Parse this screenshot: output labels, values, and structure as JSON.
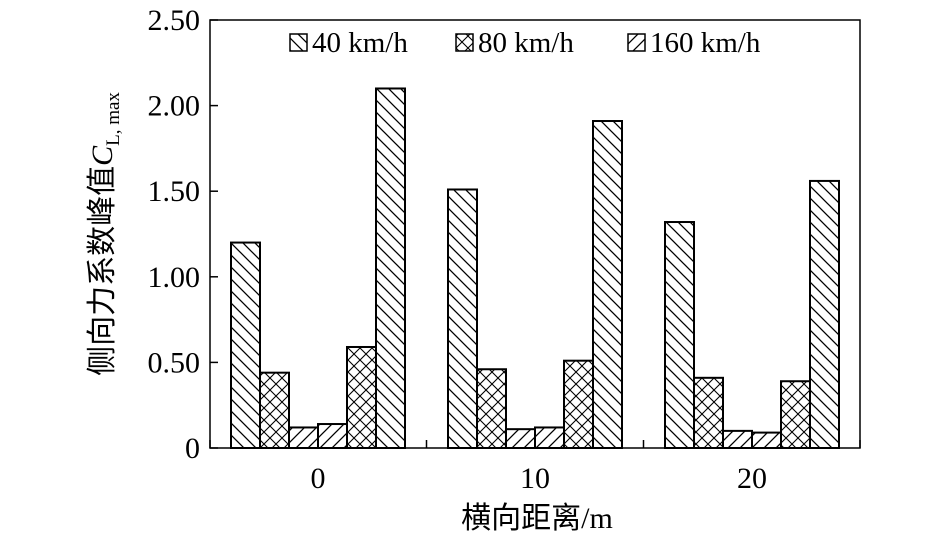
{
  "chart_data": {
    "type": "bar",
    "xlabel": "横向距离/m",
    "ylabel": {
      "main": "侧向力系数峰值",
      "symbol": "C",
      "subscript": "L, max"
    },
    "ylim": [
      0,
      2.5
    ],
    "yticks": [
      0,
      0.5,
      1.0,
      1.5,
      2.0,
      2.5
    ],
    "ytick_labels": [
      "0",
      "0.50",
      "1.00",
      "1.50",
      "2.00",
      "2.50"
    ],
    "categories": [
      "0",
      "10",
      "20"
    ],
    "legend_position": "top",
    "grid": false,
    "series": [
      {
        "name": "40 km/h",
        "pattern": "backslash",
        "values": [
          1.2,
          1.51,
          1.32
        ]
      },
      {
        "name": "80 km/h",
        "pattern": "crosshatch",
        "values": [
          0.44,
          0.46,
          0.41
        ]
      },
      {
        "name": "160 km/h",
        "pattern": "slash",
        "values": [
          0.12,
          0.11,
          0.1
        ]
      },
      {
        "name": "",
        "pattern": "slash",
        "values": [
          0.14,
          0.12,
          0.09
        ]
      },
      {
        "name": "",
        "pattern": "crosshatch",
        "values": [
          0.59,
          0.51,
          0.39
        ]
      },
      {
        "name": "",
        "pattern": "backslash",
        "values": [
          2.1,
          1.91,
          1.56
        ]
      }
    ],
    "colors": {
      "fill": "#ffffff",
      "stroke": "#000000"
    }
  }
}
